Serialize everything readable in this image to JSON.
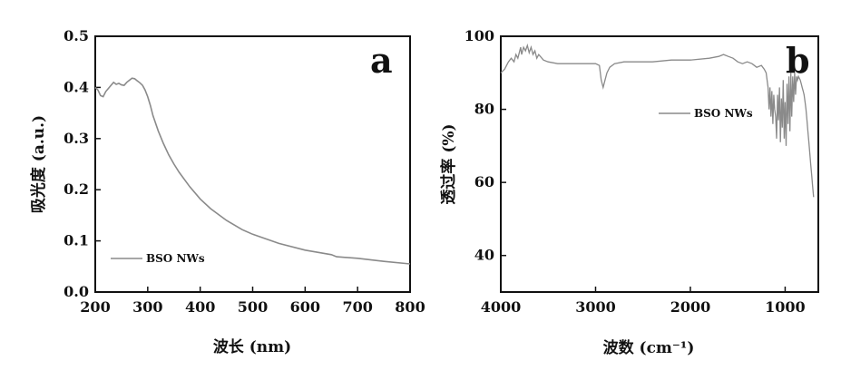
{
  "chart_data": [
    {
      "type": "line",
      "panel_label": "a",
      "xlabel": "波长 (nm)",
      "ylabel": "吸光度 (a.u.)",
      "xlim": [
        200,
        800
      ],
      "ylim": [
        0.0,
        0.5
      ],
      "x_ticks": [
        200,
        300,
        400,
        500,
        600,
        700,
        800
      ],
      "x_tick_labels": [
        "200",
        "300",
        "400",
        "500",
        "600",
        "700",
        "800"
      ],
      "y_ticks": [
        0.0,
        0.1,
        0.2,
        0.3,
        0.4,
        0.5
      ],
      "y_tick_labels": [
        "0.0",
        "0.1",
        "0.2",
        "0.3",
        "0.4",
        "0.5"
      ],
      "x_reversed": false,
      "grid": false,
      "legend_position": "bottom-left",
      "line_color": "#8a8a8a",
      "series": [
        {
          "name": "BSO NWs",
          "x": [
            200,
            205,
            210,
            215,
            220,
            225,
            230,
            235,
            240,
            245,
            250,
            255,
            260,
            265,
            270,
            275,
            280,
            285,
            290,
            295,
            300,
            305,
            310,
            320,
            330,
            340,
            350,
            360,
            380,
            400,
            420,
            450,
            480,
            500,
            550,
            600,
            650,
            660,
            700,
            750,
            800
          ],
          "y": [
            0.4,
            0.395,
            0.384,
            0.382,
            0.392,
            0.398,
            0.404,
            0.41,
            0.406,
            0.408,
            0.405,
            0.404,
            0.41,
            0.414,
            0.418,
            0.417,
            0.413,
            0.409,
            0.404,
            0.395,
            0.382,
            0.365,
            0.345,
            0.315,
            0.29,
            0.268,
            0.25,
            0.234,
            0.206,
            0.182,
            0.163,
            0.14,
            0.122,
            0.113,
            0.095,
            0.082,
            0.073,
            0.069,
            0.066,
            0.06,
            0.055
          ]
        }
      ]
    },
    {
      "type": "line",
      "panel_label": "b",
      "xlabel": "波数 (cm⁻¹)",
      "ylabel": "透过率 (%)",
      "xlim": [
        4000,
        650
      ],
      "ylim": [
        30,
        100
      ],
      "x_ticks": [
        4000,
        3000,
        2000,
        1000
      ],
      "x_tick_labels": [
        "4000",
        "3000",
        "2000",
        "1000"
      ],
      "y_ticks": [
        40,
        60,
        80,
        100
      ],
      "y_tick_labels": [
        "40",
        "60",
        "80",
        "100"
      ],
      "x_reversed": true,
      "grid": false,
      "legend_position": "top-right",
      "line_color": "#8a8a8a",
      "series": [
        {
          "name": "BSO NWs",
          "x": [
            4000,
            3960,
            3920,
            3890,
            3860,
            3840,
            3820,
            3800,
            3790,
            3780,
            3760,
            3740,
            3720,
            3700,
            3680,
            3660,
            3640,
            3620,
            3600,
            3550,
            3500,
            3400,
            3300,
            3200,
            3100,
            3000,
            2960,
            2940,
            2920,
            2900,
            2880,
            2850,
            2800,
            2700,
            2600,
            2400,
            2200,
            2000,
            1800,
            1700,
            1650,
            1600,
            1550,
            1500,
            1450,
            1400,
            1350,
            1300,
            1250,
            1220,
            1200,
            1180,
            1170,
            1160,
            1150,
            1140,
            1130,
            1120,
            1110,
            1100,
            1090,
            1080,
            1070,
            1060,
            1050,
            1040,
            1030,
            1020,
            1010,
            1000,
            990,
            980,
            970,
            960,
            950,
            940,
            930,
            920,
            910,
            900,
            890,
            880,
            870,
            860,
            850,
            840,
            830,
            820,
            810,
            800,
            790,
            780,
            770,
            760,
            750,
            740,
            730,
            720,
            710,
            700
          ],
          "y": [
            90,
            91,
            93,
            94,
            93,
            95,
            94,
            96,
            97,
            95,
            97,
            96,
            97.5,
            95.5,
            97,
            95,
            96,
            94,
            95,
            93.5,
            93,
            92.5,
            92.5,
            92.5,
            92.5,
            92.5,
            92,
            88,
            86,
            88,
            90,
            91.5,
            92.5,
            93,
            93,
            93,
            93.5,
            93.5,
            94,
            94.5,
            95,
            94.5,
            94,
            93,
            92.5,
            93,
            92.5,
            91.5,
            92,
            91,
            90,
            86,
            80,
            86,
            78,
            85,
            76,
            84,
            80,
            78,
            72,
            84,
            77,
            86,
            71,
            83,
            75,
            88,
            72,
            82,
            70,
            87,
            76,
            89,
            74,
            90,
            78,
            89,
            82,
            90,
            84,
            89,
            88,
            89,
            88.5,
            88,
            87,
            86,
            85,
            84,
            82,
            80,
            77,
            74,
            71,
            68,
            65,
            62,
            59,
            56
          ]
        }
      ]
    }
  ]
}
